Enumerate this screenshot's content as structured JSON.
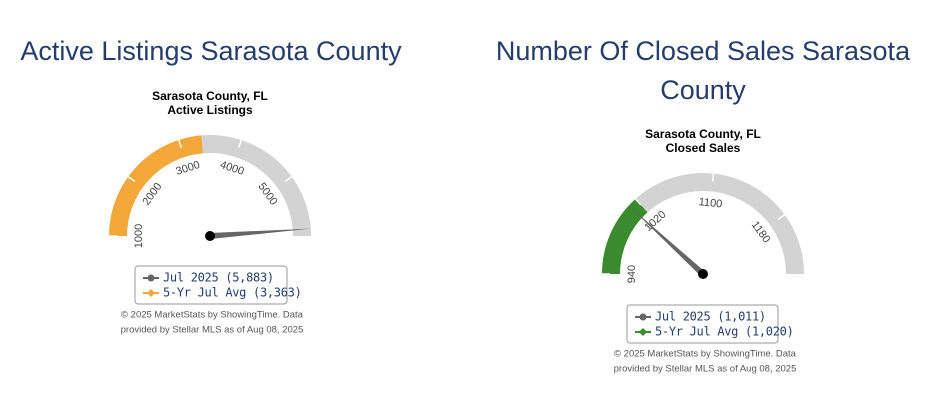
{
  "chart_data": [
    {
      "type": "gauge",
      "title": "Active Listings Sarasota County",
      "subtitle": [
        "Sarasota County, FL",
        "Active Listings"
      ],
      "ylim": [
        1000,
        6000
      ],
      "yticks": [
        1000,
        2000,
        3000,
        4000,
        5000
      ],
      "track_color": "#d3d3d3",
      "series": [
        {
          "name": "Jul 2025 (5,883)",
          "color": "#666666",
          "style": "needle",
          "values": [
            5883
          ]
        },
        {
          "name": "5-Yr Jul Avg (3,363)",
          "color": "#f5a83a",
          "style": "band",
          "values": [
            3363
          ]
        }
      ],
      "source": [
        "© 2025 MarketStats by ShowingTime. Data",
        "provided by Stellar MLS as of Aug 08, 2025"
      ]
    },
    {
      "type": "gauge",
      "title": "Number Of Closed Sales Sarasota County",
      "subtitle": [
        "Sarasota County, FL",
        "Closed Sales"
      ],
      "ylim": [
        940,
        1240
      ],
      "yticks": [
        940,
        1020,
        1100,
        1180
      ],
      "track_color": "#d3d3d3",
      "series": [
        {
          "name": "Jul 2025 (1,011)",
          "color": "#666666",
          "style": "needle",
          "values": [
            1011
          ]
        },
        {
          "name": "5-Yr Jul Avg (1,020)",
          "color": "#3a8a2e",
          "style": "band",
          "values": [
            1020
          ]
        }
      ],
      "source": [
        "© 2025 MarketStats by ShowingTime. Data",
        "provided by Stellar MLS as of Aug 08, 2025"
      ]
    }
  ]
}
